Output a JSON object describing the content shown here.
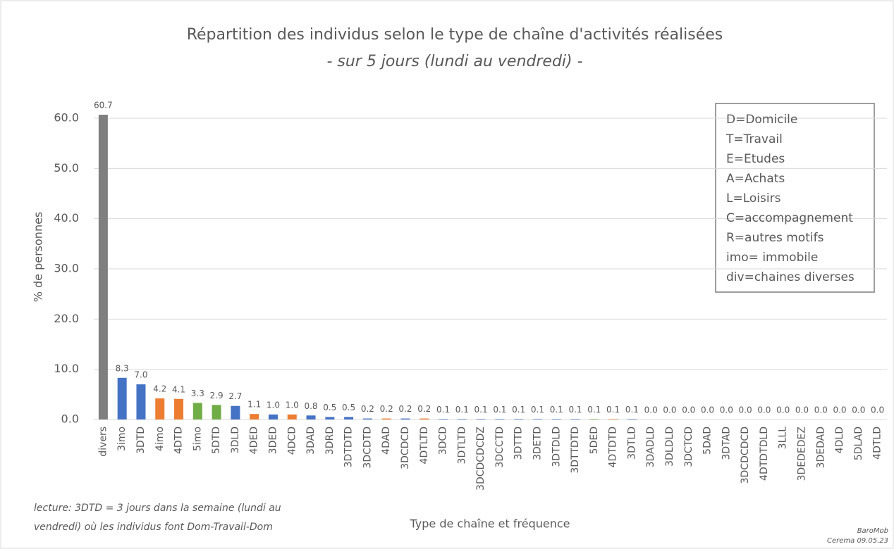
{
  "chart_data": {
    "type": "bar",
    "title": "Répartition des individus selon le type de chaîne d'activités réalisées",
    "subtitle": "- sur 5 jours (lundi au vendredi) -",
    "x_label": "Type de chaîne et fréquence",
    "y_label": "% de personnes",
    "categories": [
      "divers",
      "3imo",
      "3DTD",
      "4imo",
      "4DTD",
      "5imo",
      "5DTD",
      "3DLD",
      "4DED",
      "3DED",
      "4DCD",
      "3DAD",
      "3DRD",
      "3DTDTD",
      "3DCDTD",
      "4DAD",
      "3DCDCD",
      "4DTLTD",
      "3DCD",
      "3DTLTD",
      "3DCDCDCDZ",
      "3DCCTD",
      "3DTTD",
      "3DETD",
      "3DTDLD",
      "3DTTDTD",
      "5DED",
      "4DTDTD",
      "3DTLD",
      "3DADLD",
      "3DLDLD",
      "3DCTCD",
      "5DAD",
      "3DTAD",
      "3DCDCDCD",
      "4DTDTDLD",
      "3LLL",
      "3DEDEDEZ",
      "3DEDAD",
      "4DLD",
      "5DLAD",
      "4DTLD"
    ],
    "values": [
      60.7,
      8.3,
      7.0,
      4.2,
      4.1,
      3.3,
      2.9,
      2.7,
      1.1,
      1.0,
      1.0,
      0.8,
      0.5,
      0.5,
      0.2,
      0.2,
      0.2,
      0.2,
      0.1,
      0.1,
      0.1,
      0.1,
      0.1,
      0.1,
      0.1,
      0.1,
      0.1,
      0.1,
      0.1,
      0,
      0,
      0,
      0,
      0,
      0,
      0,
      0,
      0,
      0,
      0,
      0,
      0
    ],
    "value_labels": [
      "60.7",
      "8.3",
      "7.0",
      "4.2",
      "4.1",
      "3.3",
      "2.9",
      "2.7",
      "1.1",
      "1.0",
      "1.0",
      "0.8",
      "0.5",
      "0.5",
      "0.2",
      "0.2",
      "0.2",
      "0.2",
      "0.1",
      "0.1",
      "0.1",
      "0.1",
      "0.1",
      "0.1",
      "0.1",
      "0.1",
      "0.1",
      "0.1",
      "0.1",
      "0.0",
      "0.0",
      "0.0",
      "0.0",
      "0.0",
      "0.0",
      "0.0",
      "0.0",
      "0.0",
      "0.0",
      "0.0",
      "0.0",
      "0.0"
    ],
    "colors": [
      "#7f7f7f",
      "#4472c4",
      "#4472c4",
      "#ed7d31",
      "#ed7d31",
      "#70ad47",
      "#70ad47",
      "#4472c4",
      "#ed7d31",
      "#4472c4",
      "#ed7d31",
      "#4472c4",
      "#4472c4",
      "#4472c4",
      "#4472c4",
      "#ed7d31",
      "#4472c4",
      "#ed7d31",
      "#4472c4",
      "#4472c4",
      "#4472c4",
      "#4472c4",
      "#4472c4",
      "#4472c4",
      "#4472c4",
      "#4472c4",
      "#70ad47",
      "#ed7d31",
      "#4472c4",
      "#4472c4",
      "#4472c4",
      "#4472c4",
      "#70ad47",
      "#4472c4",
      "#4472c4",
      "#ed7d31",
      "#4472c4",
      "#4472c4",
      "#4472c4",
      "#ed7d31",
      "#70ad47",
      "#ed7d31"
    ],
    "ylim": [
      0,
      60
    ],
    "yticks": [
      {
        "value": 0,
        "label": "0.0"
      },
      {
        "value": 10,
        "label": "10.0"
      },
      {
        "value": 20,
        "label": "20.0"
      },
      {
        "value": 30,
        "label": "30.0"
      },
      {
        "value": 40,
        "label": "40.0"
      },
      {
        "value": 50,
        "label": "50.0"
      },
      {
        "value": 60,
        "label": "60.0"
      }
    ],
    "grid": true,
    "legend_box": [
      "D=Domicile",
      "T=Travail",
      "E=Etudes",
      "A=Achats",
      "L=Loisirs",
      "C=accompagnement",
      "R=autres motifs",
      "imo= immobile",
      "div=chaines diverses"
    ],
    "note": [
      "lecture: 3DTD = 3 jours dans la semaine (lundi au",
      "vendredi) où les individus font Dom-Travail-Dom"
    ],
    "source": [
      "BaroMob",
      "Cerema 09.05.23"
    ]
  }
}
